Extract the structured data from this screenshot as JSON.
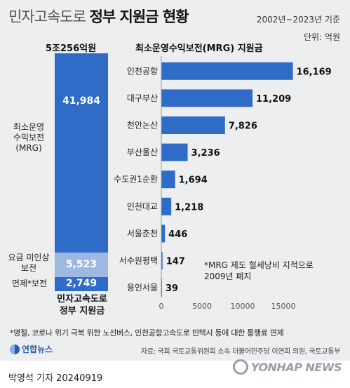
{
  "header": {
    "title_light": "민자고속도로",
    "title_bold": "정부 지원금 현황",
    "period": "2002년~2023년 기준",
    "unit": "단위: 억원"
  },
  "stack": {
    "total_label": "5조256억원",
    "bottom_label_line1": "민자고속도로",
    "bottom_label_line2": "정부 지원금",
    "segments": [
      {
        "label_line1": "최소운영",
        "label_line2": "수익보전",
        "label_line3": "(MRG)",
        "value": "41,984"
      },
      {
        "label_line1": "요금 미인상",
        "label_line2": "보전",
        "value": "5,523"
      },
      {
        "label": "면제*보전",
        "value": "2,749"
      }
    ]
  },
  "chart_data": {
    "type": "bar",
    "orientation": "horizontal",
    "title": "최소운영수익보전(MRG) 지원금",
    "categories": [
      "인천공항",
      "대구부산",
      "천안논산",
      "부산울산",
      "수도권1순환",
      "인천대교",
      "서울춘천",
      "서수원평택",
      "용인서울"
    ],
    "values": [
      16169,
      11209,
      7826,
      3236,
      1694,
      1218,
      446,
      147,
      39
    ],
    "value_labels": [
      "16,169",
      "11,209",
      "7,826",
      "3,236",
      "1,694",
      "1,218",
      "446",
      "147",
      "39"
    ],
    "xticks": [
      "0",
      "5000",
      "10000",
      "15000"
    ],
    "xlim": [
      0,
      17500
    ],
    "bar_color": "#2f6cc7"
  },
  "note": {
    "line1": "*MRG 제도 혈세낭비 지적으로",
    "line2": "2009년 폐지"
  },
  "footer": {
    "footnote": "*명절, 코로나 위기 극복 위한 노선버스, 인천공항고속도로 빈택시 등에 대한 통행료 면제",
    "logo_text": "연합뉴스",
    "source": "자료: 국회 국토교통위원회 소속 더불어민주당 이연희 의원, 국토교통부",
    "byline": "박영석 기자 20240919",
    "watermark": "YONHAP NEWS"
  }
}
